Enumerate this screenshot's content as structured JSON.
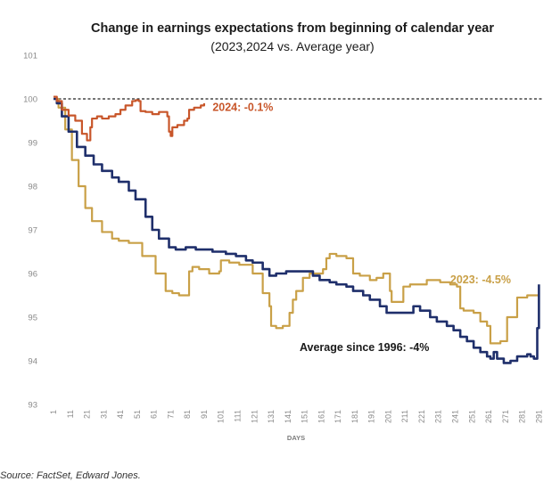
{
  "chart_data": {
    "type": "line",
    "title": "Change in earnings expectations from beginning of calendar year",
    "subtitle": "(2023,2024 vs. Average year)",
    "xlabel": "DAYS",
    "ylabel": "",
    "xlim": [
      1,
      294
    ],
    "ylim": [
      93,
      101
    ],
    "yticks": [
      93,
      94,
      95,
      96,
      97,
      98,
      99,
      100,
      101
    ],
    "xticks": [
      1,
      11,
      21,
      31,
      41,
      51,
      61,
      71,
      81,
      91,
      101,
      111,
      121,
      131,
      141,
      151,
      161,
      171,
      181,
      191,
      201,
      211,
      221,
      231,
      241,
      251,
      261,
      271,
      281,
      291
    ],
    "reference_line": {
      "y": 100,
      "style": "dashed"
    },
    "colors": {
      "2024": "#c8562a",
      "2023": "#c9a047",
      "average": "#1f2f6b",
      "reference": "#222222"
    },
    "series": [
      {
        "name": "2024",
        "annotation": "2024: -0.1%",
        "x": [
          1,
          3,
          6,
          10,
          14,
          18,
          21,
          23,
          24,
          27,
          30,
          34,
          38,
          41,
          44,
          48,
          50,
          52,
          53,
          56,
          60,
          64,
          67,
          69,
          70,
          71,
          72,
          75,
          79,
          81,
          82,
          85,
          87,
          89,
          91
        ],
        "values": [
          100.05,
          99.95,
          99.75,
          99.62,
          99.5,
          99.2,
          99.05,
          99.35,
          99.55,
          99.6,
          99.55,
          99.6,
          99.65,
          99.75,
          99.85,
          99.95,
          99.97,
          99.95,
          99.72,
          99.7,
          99.65,
          99.7,
          99.7,
          99.6,
          99.25,
          99.15,
          99.35,
          99.4,
          99.5,
          99.55,
          99.75,
          99.8,
          99.8,
          99.85,
          99.9
        ]
      },
      {
        "name": "2023",
        "annotation": "2023: -4.5%",
        "x": [
          1,
          4,
          8,
          12,
          16,
          20,
          24,
          30,
          36,
          40,
          46,
          54,
          62,
          68,
          72,
          76,
          80,
          82,
          84,
          88,
          94,
          100,
          101,
          106,
          112,
          120,
          126,
          130,
          131,
          134,
          138,
          142,
          144,
          146,
          150,
          154,
          158,
          162,
          164,
          166,
          170,
          176,
          180,
          184,
          188,
          190,
          194,
          198,
          202,
          203,
          210,
          214,
          218,
          224,
          232,
          238,
          242,
          244,
          246,
          252,
          256,
          260,
          262,
          268,
          272,
          278,
          284,
          290,
          291
        ],
        "values": [
          100.0,
          99.8,
          99.3,
          98.6,
          98.0,
          97.5,
          97.2,
          96.95,
          96.8,
          96.75,
          96.7,
          96.4,
          96.0,
          95.6,
          95.55,
          95.5,
          95.5,
          96.05,
          96.15,
          96.1,
          96.0,
          96.05,
          96.3,
          96.25,
          96.2,
          96.0,
          95.55,
          95.25,
          94.8,
          94.75,
          94.8,
          95.1,
          95.4,
          95.6,
          95.9,
          96.0,
          96.0,
          96.1,
          96.35,
          96.45,
          96.4,
          96.35,
          96.0,
          95.95,
          95.95,
          95.85,
          95.9,
          96.0,
          95.6,
          95.35,
          95.7,
          95.75,
          95.75,
          95.85,
          95.8,
          95.75,
          95.7,
          95.2,
          95.15,
          95.1,
          94.9,
          94.8,
          94.4,
          94.45,
          95.0,
          95.45,
          95.5,
          95.5,
          95.5
        ]
      },
      {
        "name": "Average since 1996",
        "annotation": "Average since 1996: -4%",
        "x": [
          1,
          3,
          6,
          10,
          15,
          20,
          25,
          30,
          36,
          40,
          46,
          50,
          56,
          60,
          64,
          70,
          74,
          80,
          86,
          90,
          96,
          100,
          104,
          110,
          116,
          120,
          126,
          130,
          134,
          140,
          144,
          150,
          156,
          160,
          166,
          170,
          176,
          180,
          186,
          190,
          196,
          200,
          206,
          210,
          216,
          220,
          226,
          230,
          236,
          240,
          244,
          248,
          252,
          256,
          260,
          262,
          264,
          266,
          270,
          274,
          278,
          284,
          286,
          288,
          290,
          291
        ],
        "values": [
          100.0,
          99.9,
          99.6,
          99.25,
          98.9,
          98.7,
          98.5,
          98.35,
          98.2,
          98.1,
          97.9,
          97.7,
          97.3,
          97.0,
          96.8,
          96.6,
          96.55,
          96.6,
          96.55,
          96.55,
          96.5,
          96.5,
          96.45,
          96.4,
          96.3,
          96.25,
          96.1,
          95.95,
          96.0,
          96.05,
          96.05,
          96.05,
          95.95,
          95.85,
          95.8,
          95.75,
          95.7,
          95.6,
          95.5,
          95.4,
          95.25,
          95.1,
          95.1,
          95.1,
          95.25,
          95.15,
          95.0,
          94.9,
          94.8,
          94.7,
          94.55,
          94.45,
          94.3,
          94.2,
          94.1,
          94.05,
          94.2,
          94.05,
          93.95,
          94.0,
          94.1,
          94.15,
          94.1,
          94.05,
          94.75,
          95.75
        ]
      }
    ]
  },
  "source": "Source: FactSet, Edward Jones."
}
